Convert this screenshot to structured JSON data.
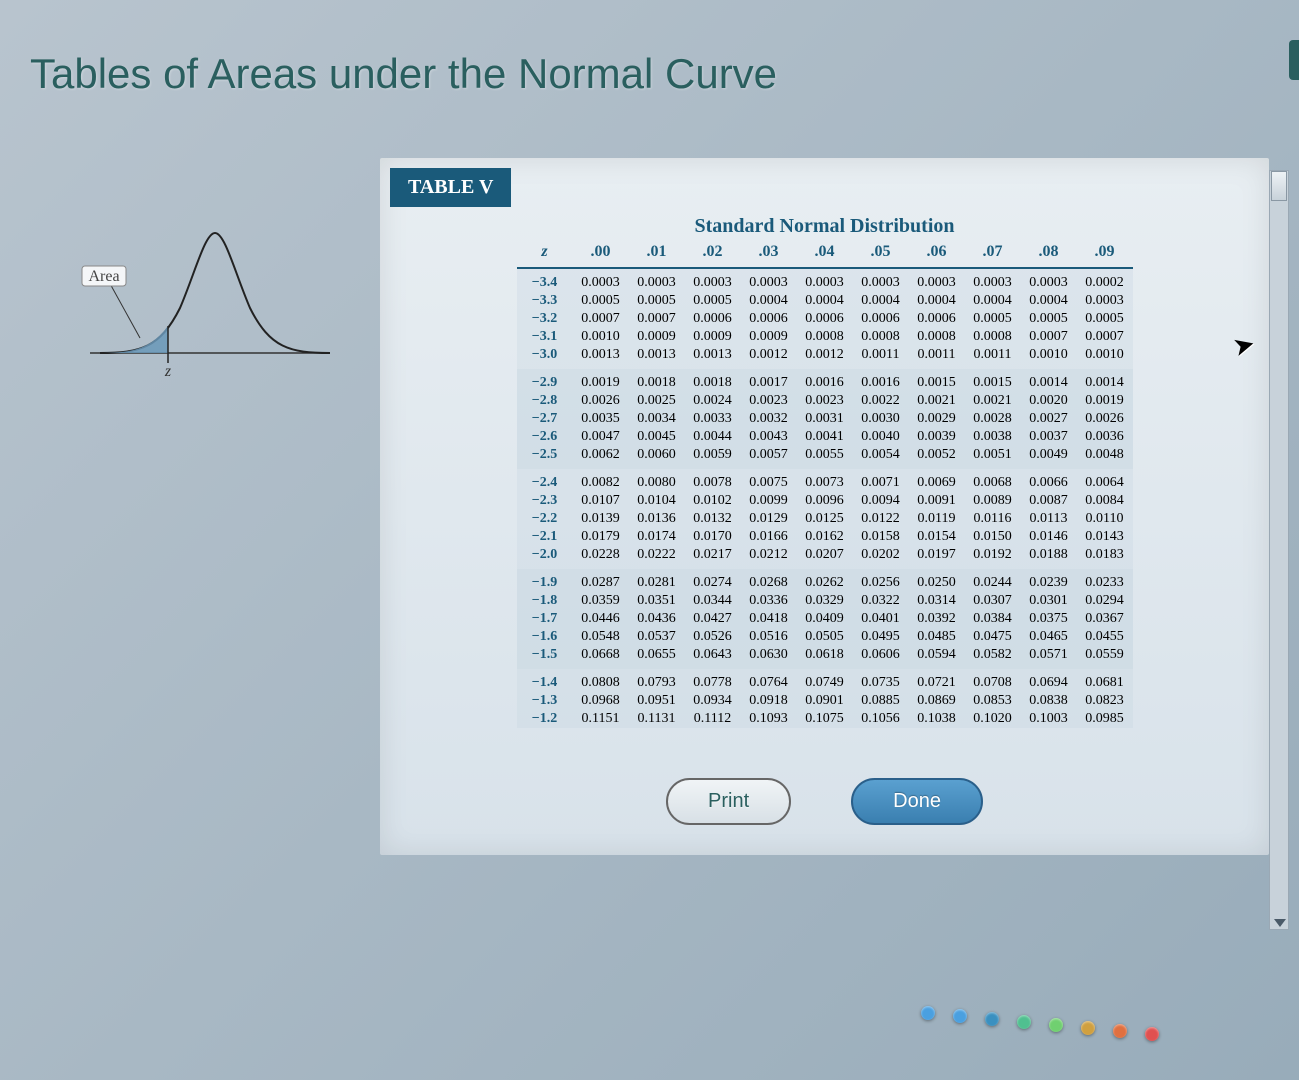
{
  "title": "Tables of Areas under the Normal Curve",
  "curve": {
    "area_label": "Area"
  },
  "table": {
    "badge": "TABLE V",
    "subtitle": "Standard Normal Distribution",
    "z_header": "z",
    "col_headers": [
      ".00",
      ".01",
      ".02",
      ".03",
      ".04",
      ".05",
      ".06",
      ".07",
      ".08",
      ".09"
    ],
    "rows": [
      {
        "z": "−3.4",
        "v": [
          "0.0003",
          "0.0003",
          "0.0003",
          "0.0003",
          "0.0003",
          "0.0003",
          "0.0003",
          "0.0003",
          "0.0003",
          "0.0002"
        ]
      },
      {
        "z": "−3.3",
        "v": [
          "0.0005",
          "0.0005",
          "0.0005",
          "0.0004",
          "0.0004",
          "0.0004",
          "0.0004",
          "0.0004",
          "0.0004",
          "0.0003"
        ]
      },
      {
        "z": "−3.2",
        "v": [
          "0.0007",
          "0.0007",
          "0.0006",
          "0.0006",
          "0.0006",
          "0.0006",
          "0.0006",
          "0.0005",
          "0.0005",
          "0.0005"
        ]
      },
      {
        "z": "−3.1",
        "v": [
          "0.0010",
          "0.0009",
          "0.0009",
          "0.0009",
          "0.0008",
          "0.0008",
          "0.0008",
          "0.0008",
          "0.0007",
          "0.0007"
        ]
      },
      {
        "z": "−3.0",
        "v": [
          "0.0013",
          "0.0013",
          "0.0013",
          "0.0012",
          "0.0012",
          "0.0011",
          "0.0011",
          "0.0011",
          "0.0010",
          "0.0010"
        ]
      },
      {
        "z": "−2.9",
        "v": [
          "0.0019",
          "0.0018",
          "0.0018",
          "0.0017",
          "0.0016",
          "0.0016",
          "0.0015",
          "0.0015",
          "0.0014",
          "0.0014"
        ]
      },
      {
        "z": "−2.8",
        "v": [
          "0.0026",
          "0.0025",
          "0.0024",
          "0.0023",
          "0.0023",
          "0.0022",
          "0.0021",
          "0.0021",
          "0.0020",
          "0.0019"
        ]
      },
      {
        "z": "−2.7",
        "v": [
          "0.0035",
          "0.0034",
          "0.0033",
          "0.0032",
          "0.0031",
          "0.0030",
          "0.0029",
          "0.0028",
          "0.0027",
          "0.0026"
        ]
      },
      {
        "z": "−2.6",
        "v": [
          "0.0047",
          "0.0045",
          "0.0044",
          "0.0043",
          "0.0041",
          "0.0040",
          "0.0039",
          "0.0038",
          "0.0037",
          "0.0036"
        ]
      },
      {
        "z": "−2.5",
        "v": [
          "0.0062",
          "0.0060",
          "0.0059",
          "0.0057",
          "0.0055",
          "0.0054",
          "0.0052",
          "0.0051",
          "0.0049",
          "0.0048"
        ]
      },
      {
        "z": "−2.4",
        "v": [
          "0.0082",
          "0.0080",
          "0.0078",
          "0.0075",
          "0.0073",
          "0.0071",
          "0.0069",
          "0.0068",
          "0.0066",
          "0.0064"
        ]
      },
      {
        "z": "−2.3",
        "v": [
          "0.0107",
          "0.0104",
          "0.0102",
          "0.0099",
          "0.0096",
          "0.0094",
          "0.0091",
          "0.0089",
          "0.0087",
          "0.0084"
        ]
      },
      {
        "z": "−2.2",
        "v": [
          "0.0139",
          "0.0136",
          "0.0132",
          "0.0129",
          "0.0125",
          "0.0122",
          "0.0119",
          "0.0116",
          "0.0113",
          "0.0110"
        ]
      },
      {
        "z": "−2.1",
        "v": [
          "0.0179",
          "0.0174",
          "0.0170",
          "0.0166",
          "0.0162",
          "0.0158",
          "0.0154",
          "0.0150",
          "0.0146",
          "0.0143"
        ]
      },
      {
        "z": "−2.0",
        "v": [
          "0.0228",
          "0.0222",
          "0.0217",
          "0.0212",
          "0.0207",
          "0.0202",
          "0.0197",
          "0.0192",
          "0.0188",
          "0.0183"
        ]
      },
      {
        "z": "−1.9",
        "v": [
          "0.0287",
          "0.0281",
          "0.0274",
          "0.0268",
          "0.0262",
          "0.0256",
          "0.0250",
          "0.0244",
          "0.0239",
          "0.0233"
        ]
      },
      {
        "z": "−1.8",
        "v": [
          "0.0359",
          "0.0351",
          "0.0344",
          "0.0336",
          "0.0329",
          "0.0322",
          "0.0314",
          "0.0307",
          "0.0301",
          "0.0294"
        ]
      },
      {
        "z": "−1.7",
        "v": [
          "0.0446",
          "0.0436",
          "0.0427",
          "0.0418",
          "0.0409",
          "0.0401",
          "0.0392",
          "0.0384",
          "0.0375",
          "0.0367"
        ]
      },
      {
        "z": "−1.6",
        "v": [
          "0.0548",
          "0.0537",
          "0.0526",
          "0.0516",
          "0.0505",
          "0.0495",
          "0.0485",
          "0.0475",
          "0.0465",
          "0.0455"
        ]
      },
      {
        "z": "−1.5",
        "v": [
          "0.0668",
          "0.0655",
          "0.0643",
          "0.0630",
          "0.0618",
          "0.0606",
          "0.0594",
          "0.0582",
          "0.0571",
          "0.0559"
        ]
      },
      {
        "z": "−1.4",
        "v": [
          "0.0808",
          "0.0793",
          "0.0778",
          "0.0764",
          "0.0749",
          "0.0735",
          "0.0721",
          "0.0708",
          "0.0694",
          "0.0681"
        ]
      },
      {
        "z": "−1.3",
        "v": [
          "0.0968",
          "0.0951",
          "0.0934",
          "0.0918",
          "0.0901",
          "0.0885",
          "0.0869",
          "0.0853",
          "0.0838",
          "0.0823"
        ]
      },
      {
        "z": "−1.2",
        "v": [
          "0.1151",
          "0.1131",
          "0.1112",
          "0.1093",
          "0.1075",
          "0.1056",
          "0.1038",
          "0.1020",
          "0.1003",
          "0.0985"
        ]
      }
    ],
    "header_color": "#1a5a7a",
    "badge_bg": "#1a5a7a",
    "font_family": "Times New Roman, serif"
  },
  "buttons": {
    "print": "Print",
    "done": "Done"
  },
  "pager_dots": [
    "#4aa0e0",
    "#4aa0e0",
    "#3a90c0",
    "#50c090",
    "#70d070",
    "#d0a040",
    "#e07040",
    "#e05050"
  ]
}
